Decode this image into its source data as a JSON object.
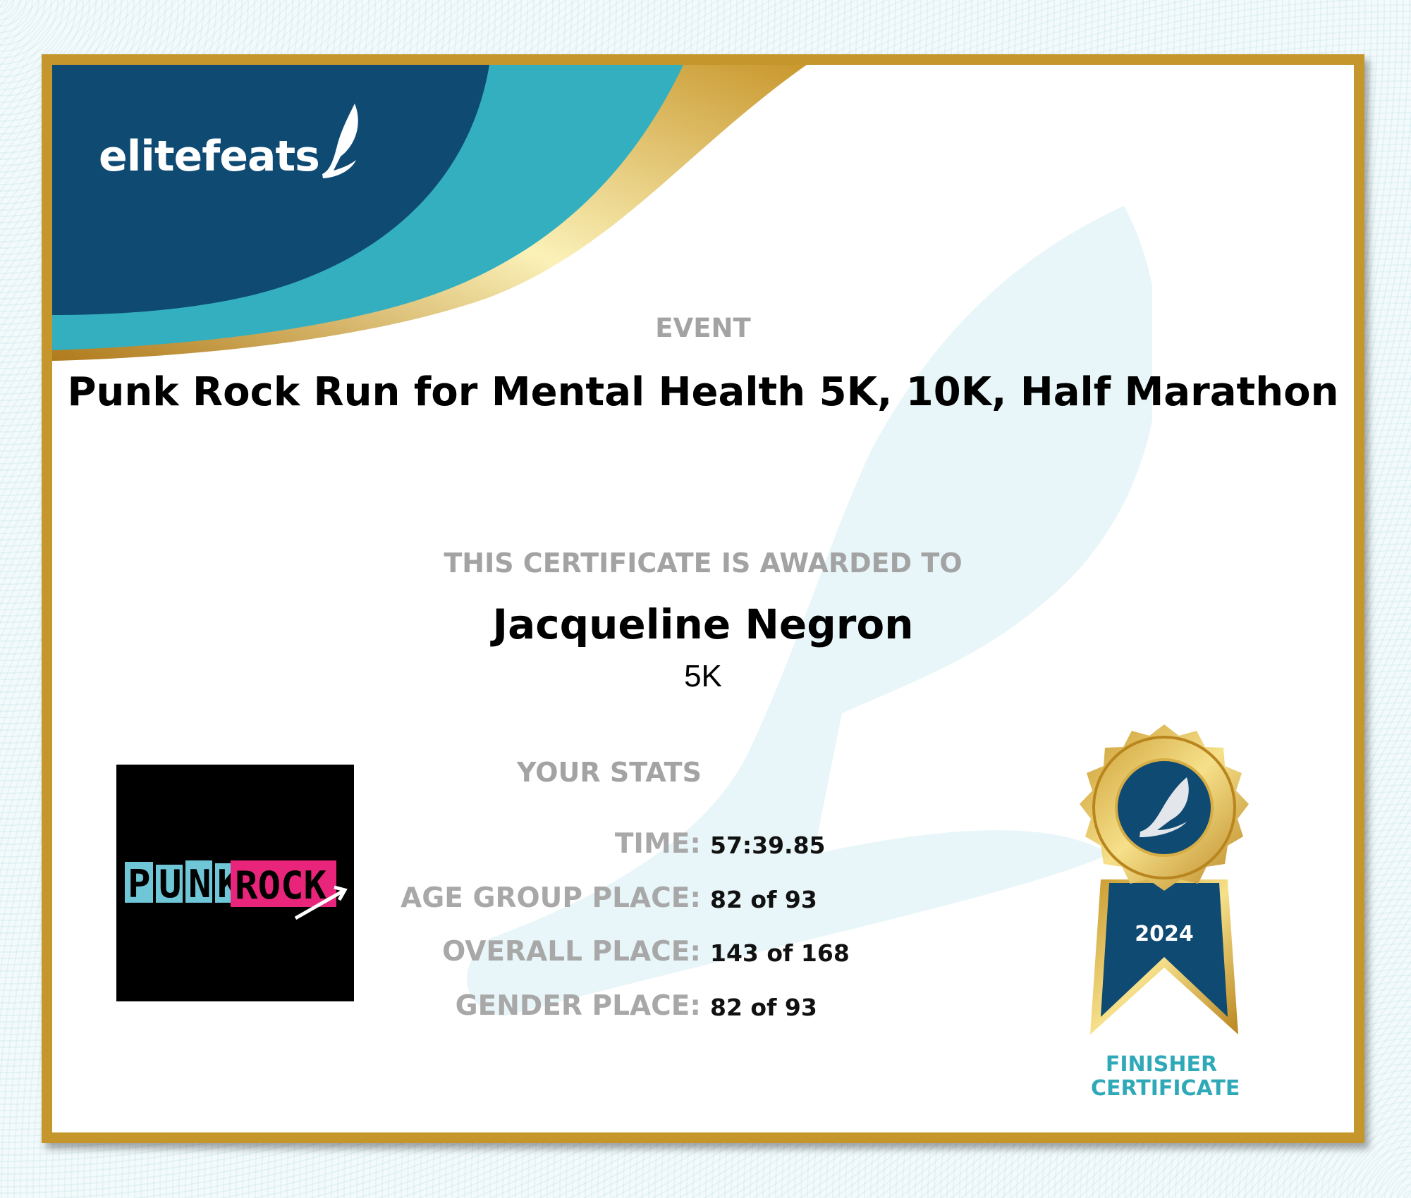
{
  "brand": {
    "logo_text": "elitefeats",
    "colors": {
      "navy": "#0f4a73",
      "teal": "#33afbf",
      "gold": "#c4962c"
    }
  },
  "certificate": {
    "event_label": "EVENT",
    "event_name": "Punk Rock Run for Mental Health 5K, 10K, Half Marathon",
    "awarded_label": "THIS CERTIFICATE IS AWARDED TO",
    "recipient": "Jacqueline Negron",
    "race": "5K",
    "stats_label": "YOUR STATS",
    "stats": [
      {
        "label": "TIME:",
        "value": "57:39.85"
      },
      {
        "label": "AGE GROUP PLACE:",
        "value": "82 of 93"
      },
      {
        "label": "OVERALL PLACE:",
        "value": "143 of 168"
      },
      {
        "label": "GENDER PLACE:",
        "value": "82 of 93"
      }
    ],
    "event_logo_text": "PUNK ROCK",
    "medal": {
      "year": "2024",
      "line1": "FINISHER",
      "line2": "CERTIFICATE",
      "icon": "winged-foot-icon"
    }
  }
}
